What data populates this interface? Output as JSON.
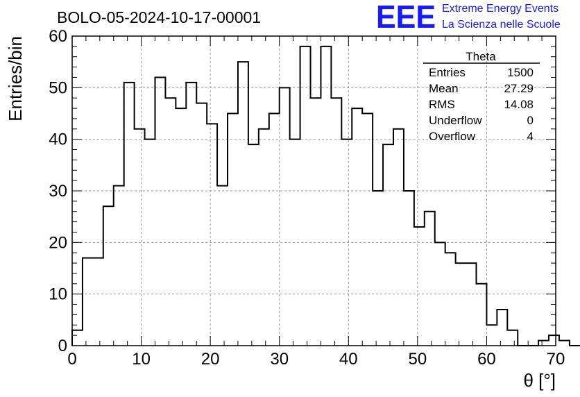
{
  "header": {
    "run_title": "BOLO-05-2024-10-17-00001",
    "logo_text": "EEE",
    "logo_line1": "Extreme Energy Events",
    "logo_line2": "La Scienza nelle Scuole",
    "logo_color": "#1a1aff"
  },
  "stats_box": {
    "title": "Theta",
    "rows": [
      {
        "label": "Entries",
        "value": "1500"
      },
      {
        "label": "Mean",
        "value": "27.29"
      },
      {
        "label": "RMS",
        "value": "14.08"
      },
      {
        "label": "Underflow",
        "value": "0"
      },
      {
        "label": "Overflow",
        "value": "4"
      }
    ]
  },
  "chart_data": {
    "type": "histogram",
    "xlabel": "θ [°]",
    "ylabel": "Entries/bin",
    "xlim": [
      0,
      70
    ],
    "ylim": [
      0,
      60
    ],
    "bin_width": 1.5,
    "bin_edges_start": 0,
    "values": [
      3,
      17,
      17,
      27,
      31,
      51,
      42,
      40,
      52,
      48,
      46,
      51,
      47,
      43,
      31,
      45,
      55,
      39,
      42,
      45,
      50,
      40,
      58,
      48,
      58,
      48,
      40,
      46,
      45,
      30,
      39,
      42,
      30,
      23,
      26,
      20,
      18,
      16,
      16,
      12,
      4,
      7,
      3,
      0,
      0,
      1,
      2,
      1,
      0
    ],
    "x_ticks": [
      0,
      10,
      20,
      30,
      40,
      50,
      60,
      70
    ],
    "y_ticks": [
      0,
      10,
      20,
      30,
      40,
      50,
      60
    ],
    "grid": true,
    "line_color": "#000000",
    "grid_color": "#999999"
  }
}
